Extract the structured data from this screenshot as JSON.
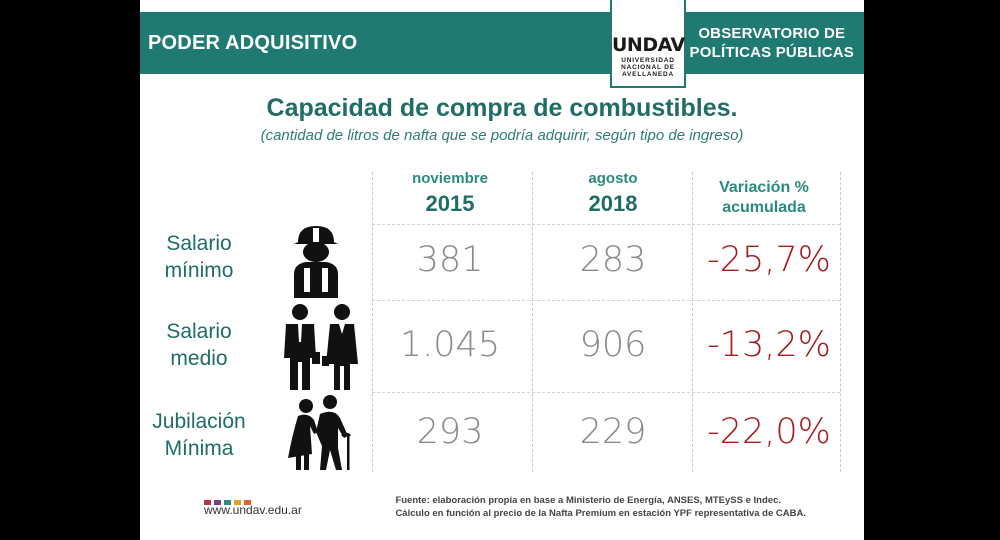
{
  "header": {
    "left_title": "PODER ADQUISITIVO",
    "right_title_line1": "OBSERVATORIO DE",
    "right_title_line2": "POLÍTICAS PÚBLICAS",
    "logo_text": "UNDAV",
    "logo_sub": "UNIVERSIDAD\nNACIONAL DE\nAVELLANEDA"
  },
  "title": "Capacidad de compra de combustibles.",
  "subtitle": "(cantidad de litros de nafta que se podría adquirir, según tipo de ingreso)",
  "columns": {
    "col1": {
      "month": "noviembre",
      "year": "2015"
    },
    "col2": {
      "month": "agosto",
      "year": "2018"
    },
    "col3": {
      "line1": "Variación %",
      "line2": "acumulada"
    }
  },
  "rows": [
    {
      "label1": "Salario",
      "label2": "mínimo",
      "v2015": "381",
      "v2018": "283",
      "variation": "-25,7%",
      "icon": "worker-icon"
    },
    {
      "label1": "Salario",
      "label2": "medio",
      "v2015": "1.045",
      "v2018": "906",
      "variation": "-13,2%",
      "icon": "office-workers-icon"
    },
    {
      "label1": "Jubilación",
      "label2": "Mínima",
      "v2015": "293",
      "v2018": "229",
      "variation": "-22,0%",
      "icon": "elderly-couple-icon"
    }
  ],
  "footer": {
    "url": "www.undav.edu.ar",
    "source_line1": "Fuente: elaboración propia en base a Ministerio de Energía, ANSES, MTEySS e Indec.",
    "source_line2": "Cálculo en función al precio de la Nafta Premium en estación YPF representativa de CABA.",
    "dot_colors": [
      "#b8334a",
      "#7a3f8a",
      "#2f8a7f",
      "#e0a02a",
      "#d8683a"
    ]
  },
  "colors": {
    "teal": "#1f7a72",
    "negative": "#a61b1b"
  }
}
